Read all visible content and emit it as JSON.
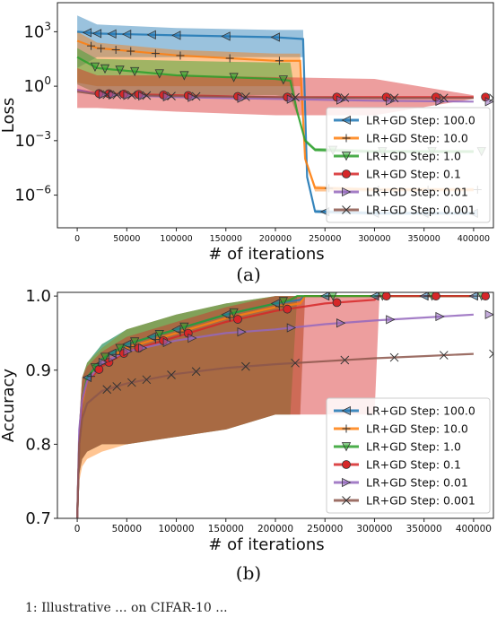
{
  "chart_data": [
    {
      "type": "line",
      "panel_caption": "(a)",
      "xlabel": "# of iterations",
      "ylabel": "Loss",
      "yscale": "log",
      "xlim": [
        -20000,
        420000
      ],
      "ylim_log10": [
        -7.8,
        4.6
      ],
      "xticks": [
        0,
        50000,
        100000,
        150000,
        200000,
        250000,
        300000,
        350000,
        400000
      ],
      "xtick_labels": [
        "0",
        "50000",
        "100000",
        "150000",
        "200000",
        "250000",
        "300000",
        "350000",
        "400000"
      ],
      "yticks_log10": [
        3,
        0,
        -3,
        -6
      ],
      "ytick_labels": [
        "10^3",
        "10^0",
        "10^-3",
        "10^-6"
      ],
      "legend_position": "lower right",
      "series": [
        {
          "name": "LR+GD Step: 100.0",
          "color": "#1f77b4",
          "marker": "triangle-left",
          "x": [
            0,
            20000,
            100000,
            200000,
            228000,
            232000,
            240000,
            300000,
            400000
          ],
          "y_log10": [
            3.0,
            2.9,
            2.8,
            2.7,
            2.6,
            -5.0,
            -6.9,
            -7.0,
            -7.0
          ],
          "band_log10": [
            [
              1.0,
              3.9
            ],
            [
              1.6,
              3.4
            ],
            [
              1.6,
              3.2
            ],
            [
              1.6,
              3.1
            ],
            [
              1.6,
              3.1
            ],
            [
              -5.2,
              -4.8
            ],
            [
              -7.0,
              -6.8
            ],
            [
              -7.1,
              -6.9
            ],
            [
              -7.1,
              -6.9
            ]
          ]
        },
        {
          "name": "LR+GD Step: 10.0",
          "color": "#ff7f0e",
          "marker": "plus",
          "x": [
            0,
            20000,
            100000,
            200000,
            225000,
            230000,
            240000,
            300000,
            400000
          ],
          "y_log10": [
            2.5,
            2.1,
            1.7,
            1.4,
            1.4,
            -4.0,
            -5.6,
            -5.7,
            -5.7
          ],
          "band_log10": [
            [
              0.2,
              3.0
            ],
            [
              0.0,
              2.4
            ],
            [
              0.0,
              2.0
            ],
            [
              0.0,
              1.8
            ],
            [
              0.0,
              1.8
            ],
            [
              -4.2,
              -3.8
            ],
            [
              -5.8,
              -5.5
            ],
            [
              -5.8,
              -5.6
            ],
            [
              -5.8,
              -5.6
            ]
          ]
        },
        {
          "name": "LR+GD Step: 1.0",
          "color": "#2ca02c",
          "marker": "triangle-down",
          "x": [
            0,
            20000,
            100000,
            200000,
            215000,
            222000,
            230000,
            240000,
            300000,
            400000
          ],
          "y_log10": [
            1.6,
            1.0,
            0.6,
            0.4,
            0.3,
            -1.4,
            -3.0,
            -3.5,
            -3.6,
            -3.6
          ],
          "band_log10": [
            [
              0.1,
              2.1
            ],
            [
              -0.4,
              1.5
            ],
            [
              -0.5,
              1.4
            ],
            [
              -0.5,
              1.3
            ],
            [
              -0.6,
              1.3
            ],
            [
              -1.6,
              -1.2
            ],
            [
              -3.1,
              -2.9
            ],
            [
              -3.6,
              -3.4
            ],
            [
              -3.7,
              -3.5
            ],
            [
              -3.7,
              -3.5
            ]
          ]
        },
        {
          "name": "LR+GD Step: 0.1",
          "color": "#d62728",
          "marker": "circle",
          "x": [
            0,
            20000,
            100000,
            200000,
            300000,
            400000
          ],
          "y_log10": [
            -0.2,
            -0.4,
            -0.5,
            -0.6,
            -0.6,
            -0.6
          ],
          "band_log10": [
            [
              -1.2,
              1.0
            ],
            [
              -1.2,
              0.6
            ],
            [
              -1.4,
              0.6
            ],
            [
              -1.6,
              0.5
            ],
            [
              -1.6,
              0.4
            ],
            [
              -0.7,
              -0.5
            ]
          ]
        },
        {
          "name": "LR+GD Step: 0.01",
          "color": "#9467bd",
          "marker": "triangle-right",
          "x": [
            0,
            20000,
            100000,
            200000,
            300000,
            400000
          ],
          "y_log10": [
            -0.2,
            -0.45,
            -0.6,
            -0.7,
            -0.8,
            -0.85
          ]
        },
        {
          "name": "LR+GD Step: 0.001",
          "color": "#8c564b",
          "marker": "x",
          "x": [
            0,
            20000,
            100000,
            200000,
            300000,
            400000
          ],
          "y_log10": [
            -0.3,
            -0.45,
            -0.55,
            -0.6,
            -0.65,
            -0.65
          ]
        }
      ]
    },
    {
      "type": "line",
      "panel_caption": "(b)",
      "xlabel": "# of iterations",
      "ylabel": "Accuracy",
      "xlim": [
        -20000,
        420000
      ],
      "ylim": [
        0.7,
        1.005
      ],
      "xticks": [
        0,
        50000,
        100000,
        150000,
        200000,
        250000,
        300000,
        350000,
        400000
      ],
      "xtick_labels": [
        "0",
        "50000",
        "100000",
        "150000",
        "200000",
        "250000",
        "300000",
        "350000",
        "400000"
      ],
      "yticks": [
        0.7,
        0.8,
        0.9,
        1.0
      ],
      "ytick_labels": [
        "0.7",
        "0.8",
        "0.9",
        "1.0"
      ],
      "legend_position": "lower right",
      "series": [
        {
          "name": "LR+GD Step: 100.0",
          "color": "#1f77b4",
          "marker": "triangle-left",
          "x": [
            0,
            2000,
            5000,
            10000,
            25000,
            50000,
            100000,
            150000,
            200000,
            225000,
            230000,
            300000,
            400000
          ],
          "y": [
            0.7,
            0.8,
            0.86,
            0.89,
            0.915,
            0.935,
            0.955,
            0.975,
            0.99,
            0.995,
            1.0,
            1.0,
            1.0
          ],
          "band": [
            [
              0.7,
              0.7
            ],
            [
              0.76,
              0.83
            ],
            [
              0.78,
              0.89
            ],
            [
              0.79,
              0.91
            ],
            [
              0.8,
              0.935
            ],
            [
              0.8,
              0.955
            ],
            [
              0.81,
              0.975
            ],
            [
              0.82,
              0.99
            ],
            [
              0.84,
              1.0
            ],
            [
              0.84,
              1.0
            ],
            [
              1.0,
              1.0
            ],
            [
              1.0,
              1.0
            ],
            [
              1.0,
              1.0
            ]
          ]
        },
        {
          "name": "LR+GD Step: 10.0",
          "color": "#ff7f0e",
          "marker": "plus",
          "x": [
            0,
            2000,
            5000,
            10000,
            25000,
            50000,
            100000,
            150000,
            200000,
            225000,
            230000,
            300000,
            400000
          ],
          "y": [
            0.7,
            0.8,
            0.855,
            0.885,
            0.91,
            0.93,
            0.95,
            0.97,
            0.985,
            0.99,
            1.0,
            1.0,
            1.0
          ],
          "band": [
            [
              0.7,
              0.7
            ],
            [
              0.75,
              0.83
            ],
            [
              0.77,
              0.89
            ],
            [
              0.78,
              0.91
            ],
            [
              0.79,
              0.93
            ],
            [
              0.8,
              0.955
            ],
            [
              0.81,
              0.975
            ],
            [
              0.82,
              0.99
            ],
            [
              0.84,
              1.0
            ],
            [
              0.84,
              1.0
            ],
            [
              1.0,
              1.0
            ],
            [
              1.0,
              1.0
            ],
            [
              1.0,
              1.0
            ]
          ]
        },
        {
          "name": "LR+GD Step: 1.0",
          "color": "#2ca02c",
          "marker": "triangle-down",
          "x": [
            0,
            2000,
            5000,
            10000,
            25000,
            50000,
            100000,
            150000,
            200000,
            215000,
            222000,
            300000,
            400000
          ],
          "y": [
            0.7,
            0.8,
            0.86,
            0.89,
            0.915,
            0.935,
            0.955,
            0.975,
            0.99,
            0.995,
            1.0,
            1.0,
            1.0
          ],
          "band": [
            [
              0.7,
              0.7
            ],
            [
              0.76,
              0.83
            ],
            [
              0.78,
              0.89
            ],
            [
              0.79,
              0.91
            ],
            [
              0.8,
              0.935
            ],
            [
              0.8,
              0.955
            ],
            [
              0.81,
              0.975
            ],
            [
              0.82,
              0.99
            ],
            [
              0.84,
              1.0
            ],
            [
              0.84,
              1.0
            ],
            [
              1.0,
              1.0
            ],
            [
              1.0,
              1.0
            ],
            [
              1.0,
              1.0
            ]
          ]
        },
        {
          "name": "LR+GD Step: 0.1",
          "color": "#d62728",
          "marker": "circle",
          "x": [
            0,
            2000,
            5000,
            10000,
            25000,
            50000,
            100000,
            150000,
            200000,
            250000,
            300000,
            305000,
            400000
          ],
          "y": [
            0.7,
            0.8,
            0.86,
            0.885,
            0.905,
            0.925,
            0.945,
            0.965,
            0.98,
            0.99,
            0.995,
            1.0,
            1.0
          ],
          "band": [
            [
              0.7,
              0.7
            ],
            [
              0.76,
              0.83
            ],
            [
              0.78,
              0.89
            ],
            [
              0.79,
              0.905
            ],
            [
              0.8,
              0.925
            ],
            [
              0.8,
              0.945
            ],
            [
              0.81,
              0.965
            ],
            [
              0.82,
              0.985
            ],
            [
              0.84,
              1.0
            ],
            [
              0.84,
              1.0
            ],
            [
              0.84,
              1.0
            ],
            [
              1.0,
              1.0
            ],
            [
              1.0,
              1.0
            ]
          ]
        },
        {
          "name": "LR+GD Step: 0.01",
          "color": "#9467bd",
          "marker": "triangle-right",
          "x": [
            0,
            2000,
            5000,
            10000,
            25000,
            50000,
            100000,
            150000,
            200000,
            250000,
            300000,
            350000,
            400000
          ],
          "y": [
            0.7,
            0.82,
            0.86,
            0.885,
            0.91,
            0.925,
            0.94,
            0.95,
            0.955,
            0.962,
            0.967,
            0.971,
            0.975
          ]
        },
        {
          "name": "LR+GD Step: 0.001",
          "color": "#8c564b",
          "marker": "x",
          "x": [
            0,
            2000,
            5000,
            10000,
            25000,
            50000,
            100000,
            150000,
            200000,
            250000,
            300000,
            350000,
            400000
          ],
          "y": [
            0.7,
            0.8,
            0.835,
            0.855,
            0.872,
            0.882,
            0.895,
            0.903,
            0.908,
            0.912,
            0.916,
            0.919,
            0.922
          ]
        }
      ]
    }
  ],
  "footer_text": "1: Illustrative ... on CIFAR-10 ..."
}
